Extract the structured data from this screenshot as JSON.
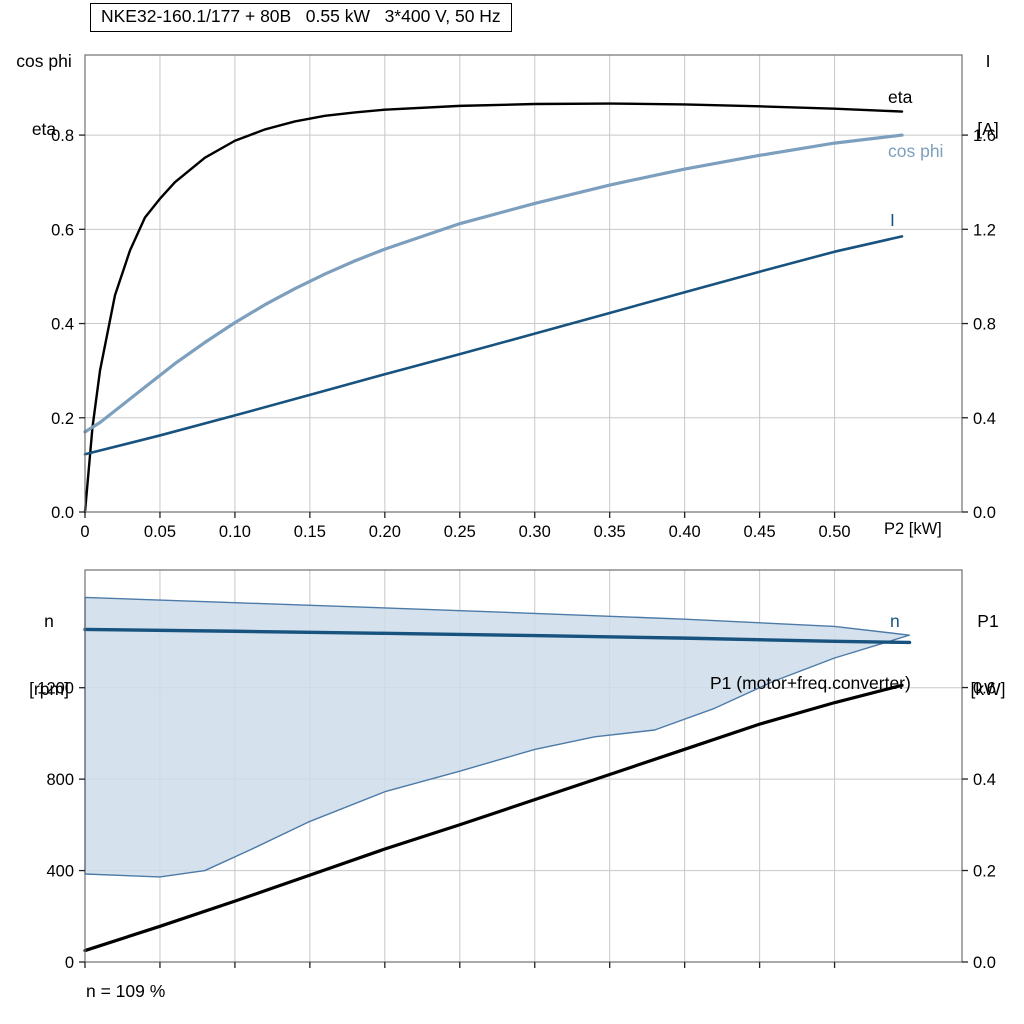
{
  "title": "NKE32-160.1/177 + 80B   0.55 kW   3*400 V, 50 Hz",
  "footer_note": "n = 109 %",
  "colors": {
    "black": "#000000",
    "dark_blue": "#17537e",
    "light_blue": "#7d9fbe",
    "envelope_fill": "#cedce9",
    "envelope_edge": "#4d7ba8",
    "grid": "#c8c8c8",
    "frame": "#707070"
  },
  "chart_data": [
    {
      "type": "line",
      "title": "NKE32-160.1/177 + 80B   0.55 kW   3*400 V, 50 Hz",
      "xlabel": "P2 [kW]",
      "ylabel_left": [
        "cos phi",
        "eta"
      ],
      "ylabel_right": [
        "I",
        "[A]"
      ],
      "xlim": [
        0,
        0.585
      ],
      "ylim_left": [
        0,
        0.97
      ],
      "ylim_right": [
        0,
        1.94
      ],
      "grid": true,
      "x_ticks": [
        0,
        0.05,
        0.1,
        0.15,
        0.2,
        0.25,
        0.3,
        0.35,
        0.4,
        0.45,
        0.5
      ],
      "x_tick_labels": [
        "0",
        "0.05",
        "0.10",
        "0.15",
        "0.20",
        "0.25",
        "0.30",
        "0.35",
        "0.40",
        "0.45",
        "0.50"
      ],
      "y_ticks_left": [
        0,
        0.2,
        0.4,
        0.6,
        0.8
      ],
      "y_tick_labels_left": [
        "0.0",
        "0.2",
        "0.4",
        "0.6",
        "0.8"
      ],
      "y_ticks_right": [
        0,
        0.4,
        0.8,
        1.2,
        1.6
      ],
      "y_tick_labels_right": [
        "0.0",
        "0.4",
        "0.8",
        "1.2",
        "1.6"
      ],
      "series": [
        {
          "name": "eta",
          "label": "eta",
          "axis": "left",
          "color_key": "black",
          "width": 2.4,
          "x": [
            0,
            0.005,
            0.01,
            0.02,
            0.03,
            0.04,
            0.05,
            0.06,
            0.08,
            0.1,
            0.12,
            0.14,
            0.16,
            0.18,
            0.2,
            0.25,
            0.3,
            0.35,
            0.4,
            0.45,
            0.5,
            0.545
          ],
          "y": [
            0,
            0.18,
            0.3,
            0.46,
            0.555,
            0.625,
            0.665,
            0.7,
            0.752,
            0.788,
            0.812,
            0.829,
            0.841,
            0.848,
            0.854,
            0.862,
            0.866,
            0.867,
            0.865,
            0.861,
            0.856,
            0.85
          ]
        },
        {
          "name": "cos-phi",
          "label": "cos phi",
          "axis": "left",
          "color_key": "light_blue",
          "width": 3.2,
          "x": [
            0,
            0.01,
            0.02,
            0.04,
            0.06,
            0.08,
            0.1,
            0.12,
            0.14,
            0.16,
            0.18,
            0.2,
            0.25,
            0.3,
            0.35,
            0.4,
            0.45,
            0.5,
            0.545
          ],
          "y": [
            0.17,
            0.19,
            0.215,
            0.265,
            0.315,
            0.36,
            0.402,
            0.44,
            0.474,
            0.505,
            0.533,
            0.558,
            0.612,
            0.655,
            0.694,
            0.728,
            0.757,
            0.783,
            0.8
          ]
        },
        {
          "name": "current",
          "label": "I",
          "axis": "right",
          "color_key": "dark_blue",
          "width": 2.6,
          "x": [
            0,
            0.05,
            0.1,
            0.15,
            0.2,
            0.25,
            0.3,
            0.35,
            0.4,
            0.45,
            0.5,
            0.545
          ],
          "y": [
            0.245,
            0.325,
            0.41,
            0.497,
            0.585,
            0.67,
            0.757,
            0.845,
            0.933,
            1.02,
            1.105,
            1.17
          ]
        }
      ]
    },
    {
      "type": "line",
      "title": "",
      "xlabel": "",
      "ylabel_left": [
        "n",
        "[rpm]"
      ],
      "ylabel_right": [
        "P1",
        "[kW]"
      ],
      "xlim": [
        0,
        0.585
      ],
      "ylim_left": [
        0,
        1715
      ],
      "ylim_right": [
        0,
        0.857
      ],
      "grid": true,
      "x_ticks": [
        0,
        0.05,
        0.1,
        0.15,
        0.2,
        0.25,
        0.3,
        0.35,
        0.4,
        0.45,
        0.5
      ],
      "x_tick_labels": [],
      "y_ticks_left": [
        0,
        400,
        800,
        1200
      ],
      "y_tick_labels_left": [
        "0",
        "400",
        "800",
        "1200"
      ],
      "y_ticks_right": [
        0,
        0.2,
        0.4,
        0.6
      ],
      "y_tick_labels_right": [
        "0.0",
        "0.2",
        "0.4",
        "0.6"
      ],
      "envelope": {
        "name": "speed-control-range",
        "x_upper": [
          0,
          0.1,
          0.2,
          0.3,
          0.4,
          0.5,
          0.55
        ],
        "y_upper": [
          1595,
          1572,
          1549,
          1525,
          1500,
          1468,
          1430
        ],
        "x_lower": [
          0,
          0.05,
          0.08,
          0.11,
          0.15,
          0.2,
          0.25,
          0.3,
          0.34,
          0.38,
          0.42,
          0.46,
          0.5,
          0.55
        ],
        "y_lower": [
          385,
          372,
          400,
          490,
          615,
          745,
          835,
          930,
          985,
          1015,
          1110,
          1230,
          1330,
          1430
        ]
      },
      "series": [
        {
          "name": "speed",
          "label": "n",
          "axis": "left",
          "color_key": "dark_blue",
          "width": 3.4,
          "x": [
            0,
            0.1,
            0.2,
            0.3,
            0.4,
            0.5,
            0.55
          ],
          "y": [
            1455,
            1447,
            1438,
            1428,
            1417,
            1403,
            1398
          ]
        },
        {
          "name": "p1",
          "label": "P1 (motor+freq.converter)",
          "axis": "right",
          "color_key": "black",
          "width": 3.2,
          "x": [
            0,
            0.05,
            0.1,
            0.15,
            0.2,
            0.25,
            0.3,
            0.35,
            0.4,
            0.45,
            0.5,
            0.545
          ],
          "y": [
            0.025,
            0.078,
            0.133,
            0.19,
            0.247,
            0.3,
            0.355,
            0.41,
            0.465,
            0.52,
            0.567,
            0.605
          ]
        }
      ],
      "footnote": "n = 109 %"
    }
  ]
}
